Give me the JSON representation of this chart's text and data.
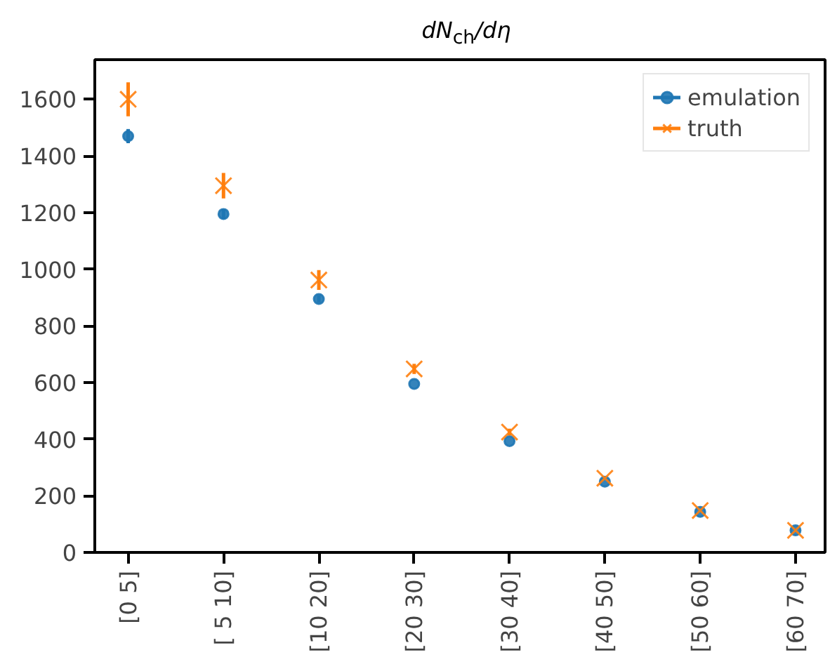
{
  "chart_data": {
    "type": "scatter",
    "title": "dN$_{ch}$/dη",
    "categories": [
      "[0 5]",
      "[ 5 10]",
      "[10 20]",
      "[20 30]",
      "[30 40]",
      "[40 50]",
      "[50 60]",
      "[60 70]"
    ],
    "series": [
      {
        "name": "emulation",
        "color": "#1f77b4",
        "marker": "circle",
        "values": [
          1470,
          1195,
          895,
          595,
          393,
          250,
          143,
          78
        ],
        "errors": [
          25,
          18,
          12,
          null,
          null,
          null,
          null,
          null
        ]
      },
      {
        "name": "truth",
        "color": "#ff7f0e",
        "marker": "cross",
        "values": [
          1600,
          1295,
          962,
          648,
          425,
          262,
          148,
          78
        ],
        "errors": [
          60,
          45,
          35,
          18,
          12,
          null,
          null,
          null
        ]
      }
    ],
    "ylim": [
      0,
      1740
    ],
    "yticks": [
      0,
      200,
      400,
      600,
      800,
      1000,
      1200,
      1400,
      1600
    ],
    "grid": false,
    "legend": "top right"
  }
}
